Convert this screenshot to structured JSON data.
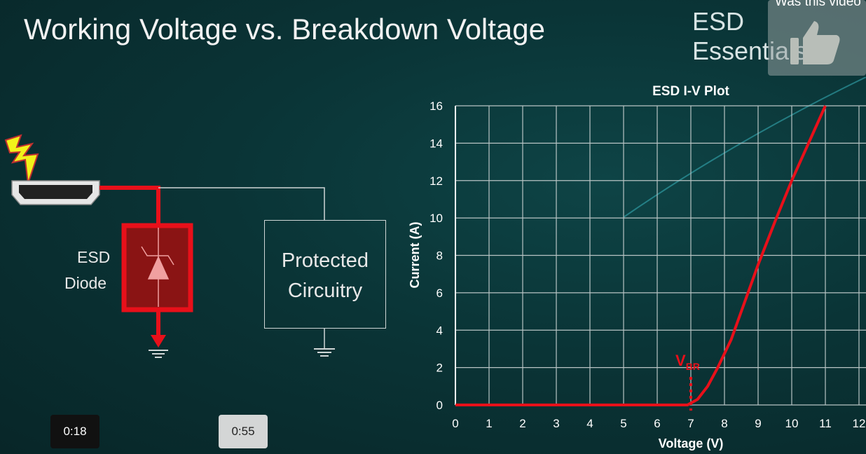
{
  "slide": {
    "title": "Working Voltage vs. Breakdown Voltage",
    "brand": "ESD Essentials"
  },
  "diagram": {
    "diode_label_1": "ESD",
    "diode_label_2": "Diode",
    "protected_line1": "Protected",
    "protected_line2": "Circuitry",
    "colors": {
      "esd_path": "#e8101a",
      "diode_fill": "#8a1414"
    }
  },
  "player": {
    "like_prompt": "Was this video",
    "like_icon": "thumbs-up-icon",
    "time_a": "0:18",
    "time_b": "0:55"
  },
  "chart_data": {
    "type": "line",
    "title": "ESD I-V Plot",
    "xlabel": "Voltage (V)",
    "ylabel": "Current (A)",
    "xlim": [
      0,
      12
    ],
    "ylim": [
      0,
      16
    ],
    "grid": true,
    "xticks": [
      "0",
      "1",
      "2",
      "3",
      "4",
      "5",
      "6",
      "7",
      "8",
      "9",
      "10",
      "11",
      "12"
    ],
    "yticks": [
      "0",
      "2",
      "4",
      "6",
      "8",
      "10",
      "12",
      "14",
      "16"
    ],
    "series": [
      {
        "color": "#e8101a",
        "x": [
          0,
          6.9,
          7.2,
          7.5,
          7.8,
          8.2,
          8.6,
          9,
          9.5,
          10,
          10.5,
          11
        ],
        "y": [
          0,
          0,
          0.3,
          1,
          2,
          3.5,
          5.5,
          7.5,
          9.8,
          12,
          14,
          16
        ]
      }
    ],
    "annotation": {
      "text": "V",
      "subscript": "BR",
      "x": 7
    }
  }
}
